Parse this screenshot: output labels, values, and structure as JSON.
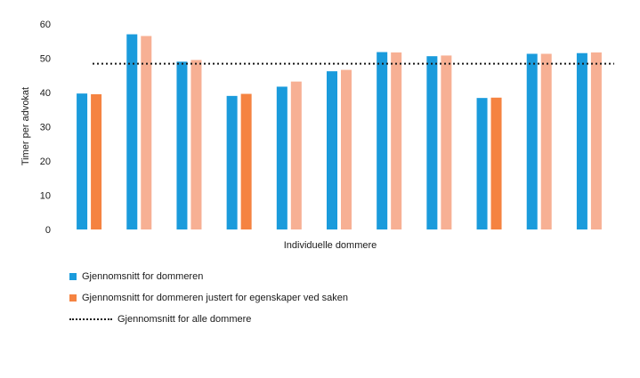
{
  "chart_data": {
    "type": "bar",
    "categories": [
      "",
      "",
      "",
      "",
      "",
      "",
      "",
      "",
      "",
      "",
      ""
    ],
    "series": [
      {
        "name": "Gjennomsnitt for dommeren",
        "values": [
          39.7,
          57.0,
          49.0,
          39.0,
          41.7,
          46.2,
          51.8,
          50.6,
          38.4,
          51.3,
          51.5
        ],
        "color": "#1a9bdc"
      },
      {
        "name": "Gjennomsnitt for dommeren justert for egenskaper ved saken",
        "values": [
          39.5,
          56.5,
          49.5,
          39.6,
          43.2,
          46.6,
          51.7,
          50.8,
          38.5,
          51.3,
          51.7
        ],
        "color": "#f58341",
        "light_color": "#f7b094"
      }
    ],
    "highlight_full_color_indices": [
      0,
      3,
      8
    ],
    "reference_line": {
      "name": "Gjennomsnitt for alle dommere",
      "value": 48.4,
      "style": "dotted"
    },
    "xlabel": "Individuelle dommere",
    "ylabel": "Timer per advokat",
    "ylim": [
      0,
      60
    ],
    "yticks": [
      0,
      10,
      20,
      30,
      40,
      50,
      60
    ],
    "grid": false,
    "legend_position": "bottom-left"
  }
}
